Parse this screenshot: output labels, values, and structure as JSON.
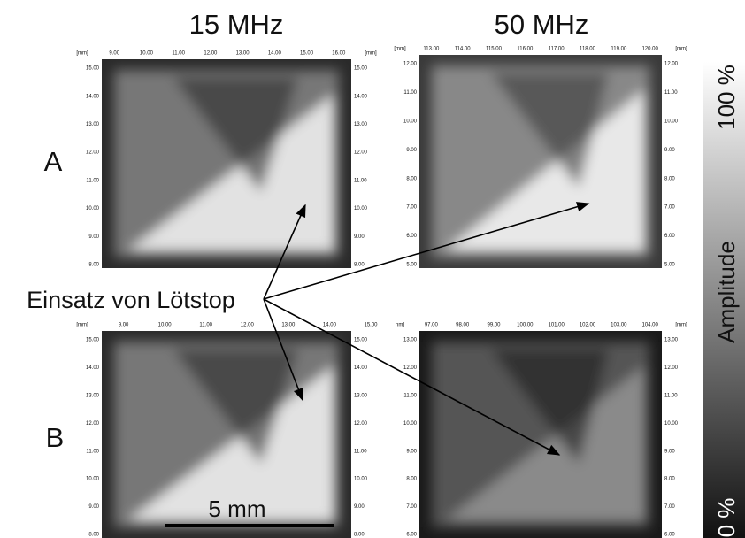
{
  "header": {
    "col1": "15 MHz",
    "col2": "50 MHz"
  },
  "rows": [
    "A",
    "B"
  ],
  "annotation": "Einsatz von Lötstop",
  "scale_bar": "5 mm",
  "colorbar": {
    "max": "100 %",
    "title": "Amplitude",
    "min": "0 %"
  },
  "panels": [
    {
      "top": [
        "[mm]",
        "9.00",
        "10.00",
        "11.00",
        "12.00",
        "13.00",
        "14.00",
        "15.00",
        "16.00",
        "[mm]"
      ],
      "left": [
        "15.00",
        "14.00",
        "13.00",
        "12.00",
        "11.00",
        "10.00",
        "9.00",
        "8.00"
      ],
      "right": [
        "15.00",
        "14.00",
        "13.00",
        "12.00",
        "11.00",
        "10.00",
        "9.00",
        "8.00"
      ]
    },
    {
      "top": [
        "[mm]",
        "113.00",
        "114.00",
        "115.00",
        "116.00",
        "117.00",
        "118.00",
        "119.00",
        "120.00",
        "[mm]"
      ],
      "left": [
        "12.00",
        "11.00",
        "10.00",
        "9.00",
        "8.00",
        "7.00",
        "6.00",
        "5.00"
      ],
      "right": [
        "12.00",
        "11.00",
        "10.00",
        "9.00",
        "8.00",
        "7.00",
        "6.00",
        "5.00"
      ]
    },
    {
      "top": [
        "[mm]",
        "9.00",
        "10.00",
        "11.00",
        "12.00",
        "13.00",
        "14.00",
        "15.00"
      ],
      "left": [
        "15.00",
        "14.00",
        "13.00",
        "12.00",
        "11.00",
        "10.00",
        "9.00",
        "8.00"
      ],
      "right": [
        "15.00",
        "14.00",
        "13.00",
        "12.00",
        "11.00",
        "10.00",
        "9.00",
        "8.00"
      ]
    },
    {
      "top": [
        "nm]",
        "97.00",
        "98.00",
        "99.00",
        "100.00",
        "101.00",
        "102.00",
        "103.00",
        "104.00",
        "[mm]"
      ],
      "left": [
        "13.00",
        "12.00",
        "11.00",
        "10.00",
        "9.00",
        "8.00",
        "7.00",
        "6.00"
      ],
      "right": [
        "13.00",
        "12.00",
        "11.00",
        "10.00",
        "9.00",
        "8.00",
        "7.00",
        "6.00"
      ]
    }
  ]
}
